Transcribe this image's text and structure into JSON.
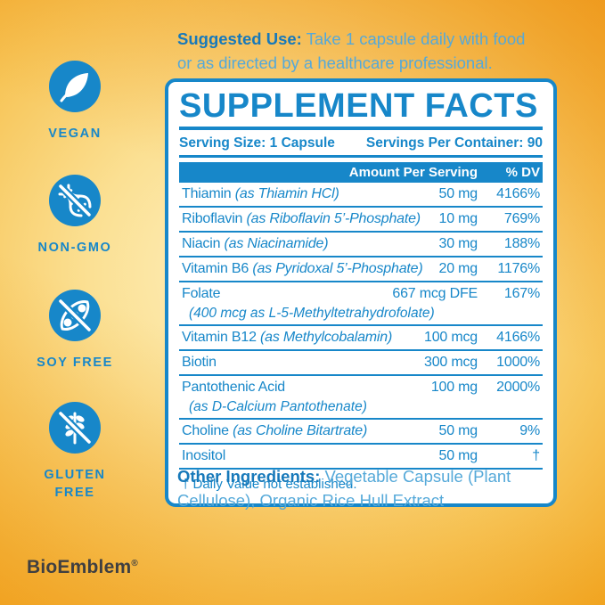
{
  "suggested_use": {
    "label": "Suggested Use:",
    "line1": "Take 1 capsule daily with food",
    "line2": "or as directed by a healthcare professional."
  },
  "badges": [
    {
      "label": "VEGAN",
      "icon": "leaf-icon"
    },
    {
      "label": "NON-GMO",
      "icon": "dna-crossed-icon"
    },
    {
      "label": "SOY FREE",
      "icon": "soybean-crossed-icon"
    },
    {
      "label": "GLUTEN FREE",
      "icon": "wheat-crossed-icon"
    }
  ],
  "panel": {
    "title": "SUPPLEMENT FACTS",
    "serving_size": "Serving Size: 1 Capsule",
    "servings_per_container": "Servings Per Container: 90",
    "header": {
      "amount": "Amount Per Serving",
      "dv": "% DV"
    },
    "rows": [
      {
        "name": "Thiamin",
        "form": "(as Thiamin HCl)",
        "amount": "50 mg",
        "dv": "4166%"
      },
      {
        "name": "Riboflavin",
        "form": "(as Riboflavin 5’-Phosphate)",
        "amount": "10 mg",
        "dv": "769%"
      },
      {
        "name": "Niacin",
        "form": "(as Niacinamide)",
        "amount": "30 mg",
        "dv": "188%"
      },
      {
        "name": "Vitamin B6",
        "form": "(as Pyridoxal 5’-Phosphate)",
        "amount": "20 mg",
        "dv": "1176%"
      },
      {
        "name": "Folate",
        "form": "",
        "amount": "667 mcg DFE",
        "dv": "167%",
        "sub": "(400 mcg as L-5-Methyltetrahydrofolate)"
      },
      {
        "name": "Vitamin B12",
        "form": "(as Methylcobalamin)",
        "amount": "100 mcg",
        "dv": "4166%"
      },
      {
        "name": "Biotin",
        "form": "",
        "amount": "300 mcg",
        "dv": "1000%"
      },
      {
        "name": "Pantothenic Acid",
        "form": "",
        "amount": "100 mg",
        "dv": "2000%",
        "sub": "(as D-Calcium Pantothenate)"
      },
      {
        "name": "Choline",
        "form": "(as Choline Bitartrate)",
        "amount": "50 mg",
        "dv": "9%"
      },
      {
        "name": "Inositol",
        "form": "",
        "amount": "50 mg",
        "dv": "†"
      }
    ],
    "footnote": "† Daily Value not established."
  },
  "other_ingredients": {
    "label": "Other Ingredients:",
    "line1": "Vegetable Capsule (Plant",
    "line2": "Cellulose), Organic Rice Hull Extract"
  },
  "brand": {
    "name": "BioEmblem",
    "mark": "®"
  },
  "colors": {
    "brand_blue": "#1787c9",
    "dark_label_blue": "#1779ba",
    "light_text_blue": "#55a9d9",
    "background_orange": "#f1a41f",
    "background_pale_yellow": "#fdf2c6",
    "brand_text": "#3f3f41",
    "panel_bg": "#ffffff"
  }
}
